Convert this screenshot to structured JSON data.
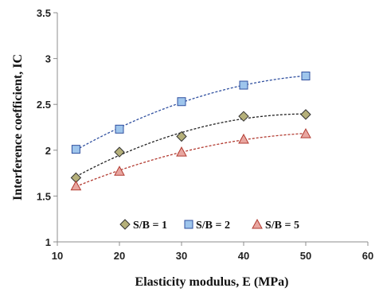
{
  "chart_data": {
    "type": "scatter",
    "title": "",
    "xlabel": "Elasticity modulus, E (MPa)",
    "ylabel": "Interference coefficient, IC",
    "xlim": [
      10,
      60
    ],
    "ylim": [
      1,
      3.5
    ],
    "x_ticks": [
      "10",
      "20",
      "30",
      "40",
      "50",
      "60"
    ],
    "y_ticks": [
      "1",
      "1.5",
      "2",
      "2.5",
      "3",
      "3.5"
    ],
    "grid": false,
    "legend_position": "bottom-center inside",
    "trendlines": "dashed polynomial",
    "series": [
      {
        "name": "S/B = 1",
        "marker": "diamond",
        "color": "#b5b07a",
        "line_color": "#222222",
        "x": [
          13,
          20,
          30,
          40,
          50
        ],
        "y": [
          1.7,
          1.98,
          2.15,
          2.37,
          2.39
        ]
      },
      {
        "name": "S/B = 2",
        "marker": "square",
        "color": "#9ec5ec",
        "line_color": "#2f4f9f",
        "x": [
          13,
          20,
          30,
          40,
          50
        ],
        "y": [
          2.01,
          2.23,
          2.53,
          2.71,
          2.81
        ]
      },
      {
        "name": "S/B = 5",
        "marker": "triangle",
        "color": "#e8a6a0",
        "line_color": "#b23a30",
        "x": [
          13,
          20,
          30,
          40,
          50
        ],
        "y": [
          1.61,
          1.77,
          1.98,
          2.12,
          2.18
        ]
      }
    ]
  }
}
